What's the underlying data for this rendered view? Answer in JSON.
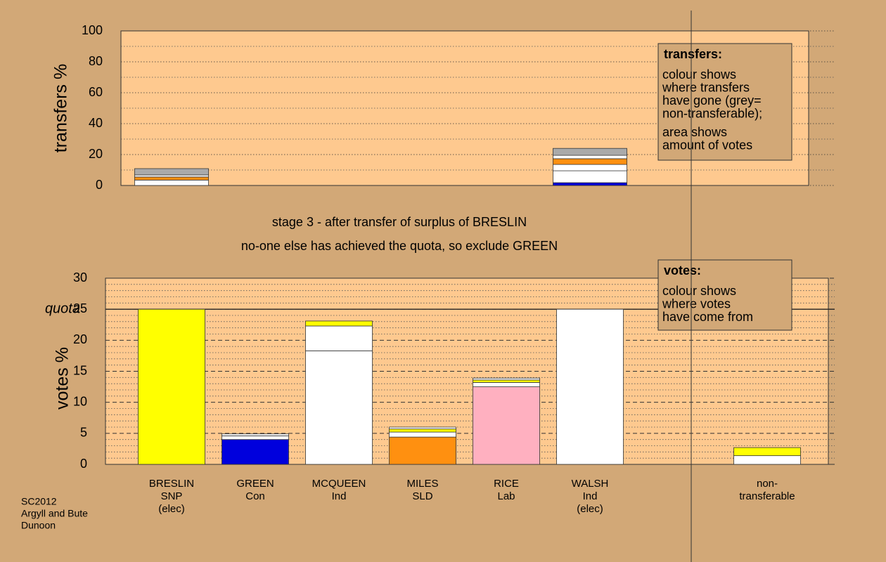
{
  "chart_data": [
    {
      "type": "bar",
      "stacked": true,
      "ylabel": "transfers %",
      "ylim": [
        0,
        100
      ],
      "yticks": [
        0,
        20,
        40,
        60,
        80,
        100
      ],
      "stacks": [
        [
          {
            "color": "#ffffff",
            "value": 3.5
          },
          {
            "color": "#ff9010",
            "value": 2.0
          },
          {
            "color": "#ffffff",
            "value": 1.3
          },
          {
            "color": "#aaaaaa",
            "value": 4.1
          }
        ],
        [],
        [],
        [],
        [],
        [
          {
            "color": "#0000dd",
            "value": 1.8
          },
          {
            "color": "#ffffff",
            "value": 7.7
          },
          {
            "color": "#ffffff",
            "value": 4.1
          },
          {
            "color": "#ff9010",
            "value": 3.7
          },
          {
            "color": "#ffffff",
            "value": 2.2
          },
          {
            "color": "#aaaaaa",
            "value": 4.5
          }
        ],
        [],
        []
      ],
      "legend": {
        "title": "transfers:",
        "paragraphs": [
          [
            "colour shows",
            "where transfers",
            "have gone (grey=",
            "non-transferable);"
          ],
          [
            "area shows",
            "amount of votes"
          ]
        ]
      }
    },
    {
      "type": "bar",
      "stacked": true,
      "ylabel": "votes %",
      "ylim": [
        0,
        30
      ],
      "yticks": [
        0,
        5,
        10,
        15,
        20,
        25,
        30
      ],
      "quota": {
        "value": 25,
        "label": "quota"
      },
      "categories": [
        [
          "BRESLIN",
          "SNP",
          "(elec)"
        ],
        [
          "GREEN",
          "Con"
        ],
        [
          "MCQUEEN",
          "Ind"
        ],
        [
          "MILES",
          "SLD"
        ],
        [
          "RICE",
          "Lab"
        ],
        [
          "WALSH",
          "Ind",
          "(elec)"
        ],
        null,
        [
          "non-",
          "transferable"
        ]
      ],
      "stacks": [
        [
          {
            "color": "#ffff00",
            "value": 25
          }
        ],
        [
          {
            "color": "#0000dd",
            "value": 4.0
          },
          {
            "color": "#ffffff",
            "value": 0.6
          },
          {
            "color": "#ffffff",
            "value": 0.3
          }
        ],
        [
          {
            "color": "#ffffff",
            "value": 18.3
          },
          {
            "color": "#ffffff",
            "value": 4.0
          },
          {
            "color": "#ffff00",
            "value": 0.8
          }
        ],
        [
          {
            "color": "#ff9010",
            "value": 4.4
          },
          {
            "color": "#ffffff",
            "value": 0.8
          },
          {
            "color": "#ffff00",
            "value": 0.5
          },
          {
            "color": "#ffffff",
            "value": 0.3
          }
        ],
        [
          {
            "color": "#ffb0c0",
            "value": 12.5
          },
          {
            "color": "#ffffff",
            "value": 0.7
          },
          {
            "color": "#ffff00",
            "value": 0.4
          },
          {
            "color": "#ffffff",
            "value": 0.3
          }
        ],
        [
          {
            "color": "#ffffff",
            "value": 25
          }
        ],
        [],
        [
          {
            "color": "#ffffff",
            "value": 1.4
          },
          {
            "color": "#ffff00",
            "value": 1.3
          }
        ]
      ],
      "legend": {
        "title": "votes:",
        "paragraphs": [
          [
            "colour shows",
            "where votes",
            "have come from"
          ]
        ]
      }
    }
  ],
  "annotations": [
    "stage 3 - after transfer of surplus of BRESLIN",
    "no-one else has achieved the quota, so exclude GREEN"
  ],
  "footer": [
    "SC2012",
    "Argyll and Bute",
    "Dunoon"
  ]
}
